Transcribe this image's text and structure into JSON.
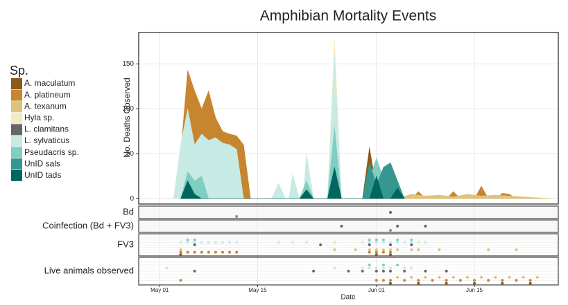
{
  "chart_data": {
    "type": "area",
    "title": "Amphibian Mortality Events",
    "ylabel": "No. Deaths Observed",
    "xlabel": "Date",
    "legend_title": "Sp.",
    "xlim": [
      -3,
      57
    ],
    "xticks": [
      {
        "value": 0,
        "label": "May 01"
      },
      {
        "value": 14,
        "label": "May 15"
      },
      {
        "value": 31,
        "label": "Jun 01"
      },
      {
        "value": 45,
        "label": "Jun 15"
      }
    ],
    "ylim": [
      -6,
      185
    ],
    "yticks": [
      0,
      50,
      100,
      150
    ],
    "grid": true,
    "series": [
      {
        "name": "A. maculatum",
        "color": "#8c5a1b",
        "x": [
          29,
          30,
          31,
          32
        ],
        "values": [
          0,
          57,
          10,
          0
        ]
      },
      {
        "name": "A. platineum",
        "color": "#c8852f",
        "x": [
          2,
          3,
          4,
          5,
          6,
          7,
          8,
          9,
          10,
          11,
          12,
          13,
          33,
          34,
          35,
          36,
          37,
          38,
          41,
          42,
          43,
          45,
          46,
          47,
          48,
          49,
          50,
          51
        ],
        "values": [
          0,
          50,
          143,
          120,
          100,
          120,
          90,
          75,
          72,
          70,
          60,
          0,
          0,
          10,
          0,
          0,
          8,
          0,
          0,
          8,
          0,
          0,
          14,
          0,
          0,
          6,
          5,
          0
        ]
      },
      {
        "name": "A. texanum",
        "color": "#dfc27d",
        "x": [
          34,
          36,
          38,
          40,
          42,
          44,
          46,
          48,
          50,
          52,
          54,
          56
        ],
        "values": [
          0,
          5,
          3,
          4,
          2,
          5,
          3,
          4,
          3,
          2,
          1,
          0
        ]
      },
      {
        "name": "Hyla sp.",
        "color": "#f6e8c3",
        "x": [
          24,
          25,
          26
        ],
        "values": [
          0,
          177,
          0
        ]
      },
      {
        "name": "L. clamitans",
        "color": "#666666",
        "x": [
          30,
          31,
          32
        ],
        "values": [
          0,
          20,
          0
        ]
      },
      {
        "name": "L. sylvaticus",
        "color": "#c7eae5",
        "x": [
          2,
          3,
          4,
          5,
          6,
          7,
          8,
          9,
          10,
          11,
          12,
          16,
          17,
          18,
          18.5,
          19,
          20,
          20.5,
          21,
          22,
          24,
          25,
          26
        ],
        "values": [
          0,
          60,
          100,
          60,
          72,
          65,
          68,
          62,
          60,
          55,
          0,
          0,
          17,
          0,
          0,
          27,
          0,
          0,
          50,
          0,
          0,
          160,
          0
        ]
      },
      {
        "name": "Pseudacris sp.",
        "color": "#80cdc1",
        "x": [
          3,
          4,
          5,
          6,
          7,
          20,
          21,
          22,
          24,
          25,
          26,
          29,
          31,
          33
        ],
        "values": [
          0,
          30,
          20,
          25,
          0,
          0,
          20,
          0,
          0,
          80,
          0,
          0,
          45,
          0
        ]
      },
      {
        "name": "UnID sals",
        "color": "#35978f",
        "x": [
          29,
          30,
          31,
          32,
          33,
          34,
          35
        ],
        "values": [
          0,
          40,
          15,
          35,
          40,
          20,
          0
        ]
      },
      {
        "name": "UnID tads",
        "color": "#01665e",
        "x": [
          3,
          4,
          5,
          6,
          20,
          21,
          22,
          24,
          25,
          26,
          30,
          31,
          32,
          33,
          34,
          35
        ],
        "values": [
          0,
          20,
          5,
          0,
          0,
          10,
          0,
          0,
          35,
          0,
          0,
          25,
          0,
          0,
          12,
          0
        ]
      }
    ],
    "panels": [
      {
        "label": "Bd",
        "points": [
          [
            11,
            1
          ],
          [
            33,
            4
          ]
        ]
      },
      {
        "label": "Coinfection (Bd + FV3)",
        "points": [
          [
            26,
            4
          ],
          [
            33,
            1
          ],
          [
            34,
            4
          ],
          [
            38,
            4
          ]
        ]
      },
      {
        "label": "FV3",
        "points": [
          [
            3,
            5
          ],
          [
            4,
            5
          ],
          [
            5,
            5
          ],
          [
            6,
            5
          ],
          [
            7,
            5
          ],
          [
            8,
            5
          ],
          [
            9,
            5
          ],
          [
            10,
            5
          ],
          [
            11,
            5
          ],
          [
            17,
            5
          ],
          [
            19,
            5
          ],
          [
            21,
            5
          ],
          [
            25,
            5
          ],
          [
            29,
            5
          ],
          [
            30,
            5
          ],
          [
            31,
            5
          ],
          [
            32,
            5
          ],
          [
            33,
            5
          ],
          [
            34,
            5
          ],
          [
            35,
            5
          ],
          [
            36,
            5
          ],
          [
            37,
            5
          ],
          [
            38,
            5
          ],
          [
            4,
            6
          ],
          [
            5,
            6
          ],
          [
            30,
            6
          ],
          [
            31,
            6
          ],
          [
            32,
            6
          ],
          [
            34,
            6
          ],
          [
            36,
            6
          ],
          [
            5,
            4
          ],
          [
            23,
            4
          ],
          [
            30,
            4
          ],
          [
            33,
            4
          ],
          [
            36,
            4
          ],
          [
            3,
            2
          ],
          [
            25,
            2
          ],
          [
            28,
            2
          ],
          [
            30,
            2
          ],
          [
            31,
            2
          ],
          [
            32,
            2
          ],
          [
            33,
            2
          ],
          [
            34,
            2
          ],
          [
            36,
            2
          ],
          [
            37,
            2
          ],
          [
            40,
            2
          ],
          [
            47,
            2
          ],
          [
            51,
            2
          ],
          [
            3,
            1
          ],
          [
            4,
            1
          ],
          [
            5,
            1
          ],
          [
            6,
            1
          ],
          [
            7,
            1
          ],
          [
            8,
            1
          ],
          [
            9,
            1
          ],
          [
            10,
            1
          ],
          [
            11,
            1
          ],
          [
            30,
            1
          ],
          [
            31,
            1
          ],
          [
            32,
            1
          ],
          [
            33,
            1
          ],
          [
            3,
            0
          ],
          [
            31,
            0
          ],
          [
            33,
            0
          ]
        ]
      },
      {
        "label": "Live animals observed",
        "points": [
          [
            1,
            5
          ],
          [
            25,
            5
          ],
          [
            29,
            5
          ],
          [
            30,
            5
          ],
          [
            31,
            5
          ],
          [
            32,
            5
          ],
          [
            33,
            5
          ],
          [
            35,
            5
          ],
          [
            36,
            5
          ],
          [
            30,
            6
          ],
          [
            32,
            6
          ],
          [
            34,
            6
          ],
          [
            5,
            4
          ],
          [
            22,
            4
          ],
          [
            27,
            4
          ],
          [
            29,
            4
          ],
          [
            31,
            4
          ],
          [
            32,
            4
          ],
          [
            33,
            4
          ],
          [
            35,
            4
          ],
          [
            38,
            4
          ],
          [
            41,
            4
          ],
          [
            34,
            2
          ],
          [
            36,
            2
          ],
          [
            38,
            2
          ],
          [
            40,
            2
          ],
          [
            42,
            2
          ],
          [
            44,
            2
          ],
          [
            46,
            2
          ],
          [
            48,
            2
          ],
          [
            50,
            2
          ],
          [
            52,
            2
          ],
          [
            54,
            2
          ],
          [
            3,
            1
          ],
          [
            31,
            1
          ],
          [
            32,
            1
          ],
          [
            33,
            1
          ],
          [
            35,
            1
          ],
          [
            37,
            1
          ],
          [
            39,
            1
          ],
          [
            41,
            1
          ],
          [
            43,
            1
          ],
          [
            45,
            1
          ],
          [
            47,
            1
          ],
          [
            49,
            1
          ],
          [
            51,
            1
          ],
          [
            53,
            1
          ],
          [
            33,
            0
          ],
          [
            37,
            0
          ],
          [
            41,
            0
          ],
          [
            45,
            0
          ],
          [
            49,
            0
          ],
          [
            53,
            0
          ]
        ]
      }
    ]
  }
}
